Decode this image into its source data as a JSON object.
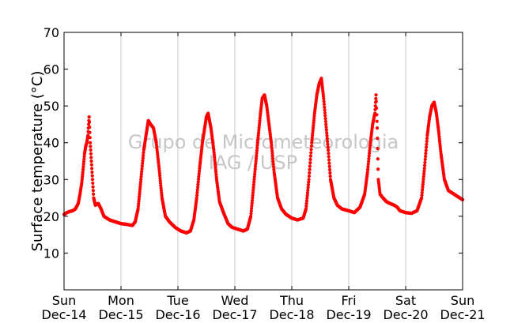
{
  "chart_data": {
    "type": "scatter",
    "title": "",
    "xlabel": "",
    "ylabel": "Surface temperature (°C)",
    "ylim": [
      0,
      70
    ],
    "yticks": [
      10,
      20,
      30,
      40,
      50,
      60,
      70
    ],
    "xlim": [
      0,
      7
    ],
    "xticks": [
      {
        "pos": 0,
        "day": "Sun",
        "date": "Dec-14"
      },
      {
        "pos": 1,
        "day": "Mon",
        "date": "Dec-15"
      },
      {
        "pos": 2,
        "day": "Tue",
        "date": "Dec-16"
      },
      {
        "pos": 3,
        "day": "Wed",
        "date": "Dec-17"
      },
      {
        "pos": 4,
        "day": "Thu",
        "date": "Dec-18"
      },
      {
        "pos": 5,
        "day": "Fri",
        "date": "Dec-19"
      },
      {
        "pos": 6,
        "day": "Sat",
        "date": "Dec-20"
      },
      {
        "pos": 7,
        "day": "Sun",
        "date": "Dec-21"
      }
    ],
    "grid": "vertical",
    "marker_color": "#ff0000",
    "watermark": [
      "Grupo de Micrometeorologia",
      "IAG / USP"
    ],
    "x_unit": "days since Dec-14 00:00",
    "series": [
      {
        "points": [
          [
            0.0,
            20.5
          ],
          [
            0.05,
            21.0
          ],
          [
            0.1,
            21.3
          ],
          [
            0.15,
            21.5
          ],
          [
            0.2,
            22.0
          ],
          [
            0.25,
            23.5
          ],
          [
            0.28,
            26.0
          ],
          [
            0.31,
            29.0
          ],
          [
            0.33,
            32.0
          ],
          [
            0.36,
            37.0
          ],
          [
            0.38,
            39.0
          ],
          [
            0.4,
            40.0
          ],
          [
            0.42,
            42.0
          ],
          [
            0.44,
            47.0
          ],
          [
            0.46,
            40.0
          ],
          [
            0.48,
            35.0
          ],
          [
            0.5,
            30.0
          ],
          [
            0.52,
            25.0
          ],
          [
            0.55,
            23.0
          ],
          [
            0.6,
            23.5
          ],
          [
            0.65,
            22.0
          ],
          [
            0.7,
            20.0
          ],
          [
            0.8,
            19.0
          ],
          [
            0.9,
            18.5
          ],
          [
            1.0,
            18.0
          ],
          [
            1.1,
            17.8
          ],
          [
            1.2,
            17.5
          ],
          [
            1.25,
            18.5
          ],
          [
            1.3,
            22.0
          ],
          [
            1.35,
            30.0
          ],
          [
            1.4,
            38.0
          ],
          [
            1.45,
            43.0
          ],
          [
            1.48,
            46.0
          ],
          [
            1.52,
            45.0
          ],
          [
            1.57,
            44.0
          ],
          [
            1.62,
            40.0
          ],
          [
            1.67,
            33.0
          ],
          [
            1.72,
            25.0
          ],
          [
            1.78,
            20.0
          ],
          [
            1.85,
            18.5
          ],
          [
            1.95,
            17.0
          ],
          [
            2.05,
            16.0
          ],
          [
            2.15,
            15.5
          ],
          [
            2.22,
            16.0
          ],
          [
            2.28,
            19.0
          ],
          [
            2.33,
            25.0
          ],
          [
            2.38,
            33.0
          ],
          [
            2.43,
            40.0
          ],
          [
            2.47,
            44.0
          ],
          [
            2.5,
            47.0
          ],
          [
            2.53,
            48.0
          ],
          [
            2.58,
            44.0
          ],
          [
            2.63,
            38.0
          ],
          [
            2.68,
            30.0
          ],
          [
            2.73,
            24.0
          ],
          [
            2.8,
            21.0
          ],
          [
            2.88,
            18.0
          ],
          [
            2.95,
            17.0
          ],
          [
            3.05,
            16.5
          ],
          [
            3.15,
            16.0
          ],
          [
            3.22,
            16.5
          ],
          [
            3.28,
            20.0
          ],
          [
            3.34,
            30.0
          ],
          [
            3.4,
            40.0
          ],
          [
            3.45,
            48.0
          ],
          [
            3.48,
            52.0
          ],
          [
            3.52,
            53.0
          ],
          [
            3.56,
            50.0
          ],
          [
            3.6,
            45.0
          ],
          [
            3.64,
            40.0
          ],
          [
            3.69,
            32.0
          ],
          [
            3.75,
            25.0
          ],
          [
            3.82,
            22.0
          ],
          [
            3.9,
            20.5
          ],
          [
            4.0,
            19.5
          ],
          [
            4.1,
            19.0
          ],
          [
            4.2,
            19.5
          ],
          [
            4.25,
            22.0
          ],
          [
            4.3,
            30.0
          ],
          [
            4.35,
            40.0
          ],
          [
            4.4,
            48.0
          ],
          [
            4.44,
            53.0
          ],
          [
            4.48,
            56.0
          ],
          [
            4.52,
            57.5
          ],
          [
            4.56,
            52.0
          ],
          [
            4.6,
            45.0
          ],
          [
            4.64,
            38.0
          ],
          [
            4.68,
            30.0
          ],
          [
            4.74,
            25.0
          ],
          [
            4.8,
            23.0
          ],
          [
            4.88,
            22.0
          ],
          [
            5.0,
            21.5
          ],
          [
            5.1,
            21.0
          ],
          [
            5.2,
            22.5
          ],
          [
            5.28,
            26.0
          ],
          [
            5.33,
            32.0
          ],
          [
            5.38,
            40.0
          ],
          [
            5.42,
            45.0
          ],
          [
            5.46,
            48.0
          ],
          [
            5.48,
            53.0
          ],
          [
            5.5,
            44.0
          ],
          [
            5.52,
            30.0
          ],
          [
            5.55,
            26.0
          ],
          [
            5.6,
            25.0
          ],
          [
            5.66,
            24.0
          ],
          [
            5.72,
            23.5
          ],
          [
            5.8,
            23.0
          ],
          [
            5.85,
            22.5
          ],
          [
            5.9,
            21.5
          ],
          [
            6.0,
            21.0
          ],
          [
            6.1,
            20.8
          ],
          [
            6.2,
            21.5
          ],
          [
            6.28,
            25.0
          ],
          [
            6.33,
            33.0
          ],
          [
            6.38,
            42.0
          ],
          [
            6.42,
            47.0
          ],
          [
            6.46,
            50.0
          ],
          [
            6.5,
            51.0
          ],
          [
            6.54,
            48.0
          ],
          [
            6.58,
            43.0
          ],
          [
            6.62,
            37.0
          ],
          [
            6.68,
            30.0
          ],
          [
            6.75,
            27.0
          ],
          [
            6.85,
            26.0
          ],
          [
            6.95,
            25.0
          ],
          [
            7.0,
            24.5
          ]
        ]
      }
    ]
  }
}
